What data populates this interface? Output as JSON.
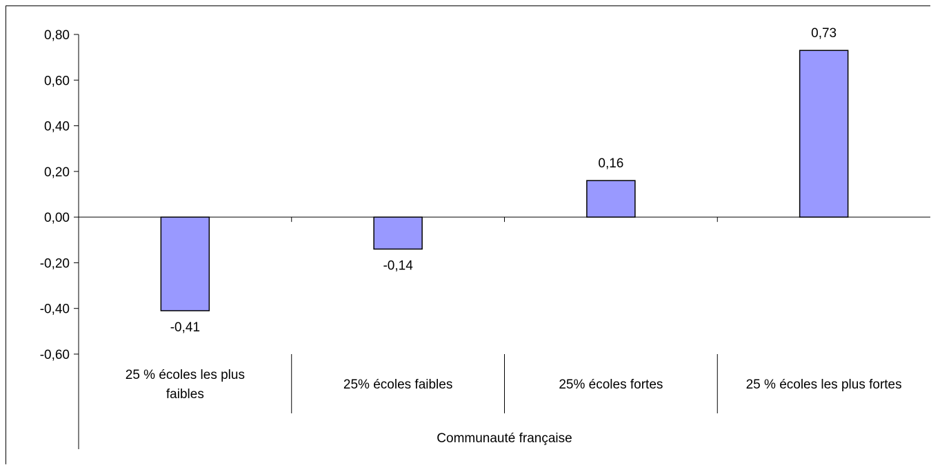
{
  "chart_data": {
    "type": "bar",
    "categories": [
      [
        "25 % écoles les plus",
        "faibles"
      ],
      [
        "25% écoles faibles"
      ],
      [
        "25% écoles fortes"
      ],
      [
        "25 % écoles les plus fortes"
      ]
    ],
    "values": [
      -0.41,
      -0.14,
      0.16,
      0.73
    ],
    "data_labels": [
      "-0,41",
      "-0,14",
      "0,16",
      "0,73"
    ],
    "group_label": "Communauté française",
    "yticks": [
      "0,80",
      "0,60",
      "0,40",
      "0,20",
      "0,00",
      "-0,20",
      "-0,40",
      "-0,60"
    ],
    "ylim": [
      -0.6,
      0.8
    ],
    "bar_color": "#9999ff",
    "bar_border": "#000000",
    "grid": false,
    "legend": "none"
  }
}
